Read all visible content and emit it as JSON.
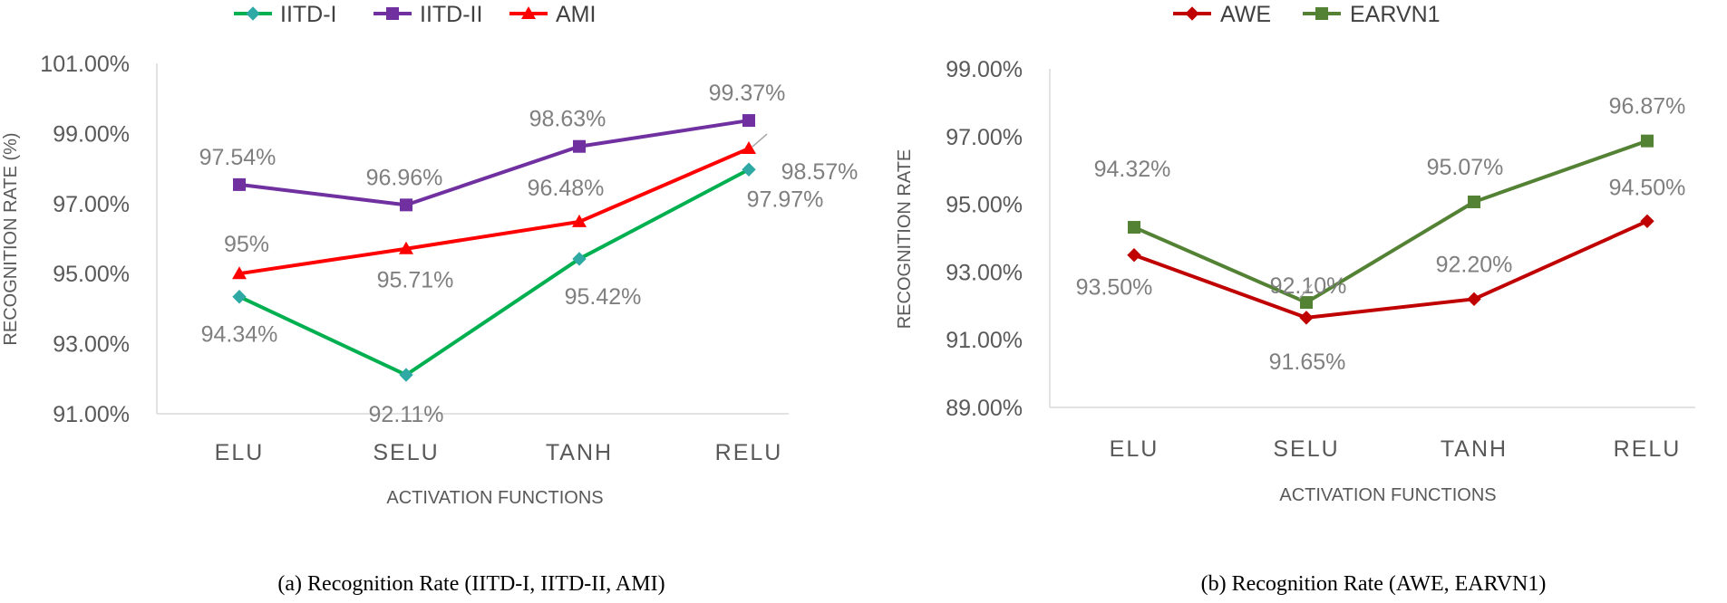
{
  "chart_data": [
    {
      "type": "line",
      "caption": "(a) Recognition Rate (IITD-I, IITD-II, AMI)",
      "xlabel": "ACTIVATION FUNCTIONS",
      "ylabel": "RECOGNITION RATE (%)",
      "categories": [
        "ELU",
        "SELU",
        "TANH",
        "RELU"
      ],
      "ylim": [
        91,
        101
      ],
      "yticks": [
        91,
        93,
        95,
        97,
        99,
        101
      ],
      "ytick_labels": [
        "91.00%",
        "93.00%",
        "95.00%",
        "97.00%",
        "99.00%",
        "101.00%"
      ],
      "legend_position": "top",
      "series": [
        {
          "name": "IITD-I",
          "color": "#00B050",
          "marker": "diamond",
          "marker_color": "#2EA9A4",
          "values": [
            94.34,
            92.11,
            95.42,
            97.97
          ],
          "labels": [
            "94.34%",
            "92.11%",
            "95.42%",
            "97.97%"
          ]
        },
        {
          "name": "IITD-II",
          "color": "#7030A0",
          "marker": "square",
          "marker_color": "#7030A0",
          "values": [
            97.54,
            96.96,
            98.63,
            99.37
          ],
          "labels": [
            "97.54%",
            "96.96%",
            "98.63%",
            "99.37%"
          ]
        },
        {
          "name": "AMI",
          "color": "#FF0000",
          "marker": "triangle",
          "marker_color": "#FF0000",
          "values": [
            95,
            95.71,
            96.48,
            98.57
          ],
          "labels": [
            "95%",
            "95.71%",
            "96.48%",
            "98.57%"
          ]
        }
      ]
    },
    {
      "type": "line",
      "caption": "(b) Recognition Rate (AWE, EARVN1)",
      "xlabel": "ACTIVATION FUNCTIONS",
      "ylabel": "RECOGNITION RATE",
      "categories": [
        "ELU",
        "SELU",
        "TANH",
        "RELU"
      ],
      "ylim": [
        89,
        99
      ],
      "yticks": [
        89,
        91,
        93,
        95,
        97,
        99
      ],
      "ytick_labels": [
        "89.00%",
        "91.00%",
        "93.00%",
        "95.00%",
        "97.00%",
        "99.00%"
      ],
      "legend_position": "top",
      "series": [
        {
          "name": "AWE",
          "color": "#C00000",
          "marker": "diamond",
          "marker_color": "#C00000",
          "values": [
            93.5,
            91.65,
            92.2,
            94.5
          ],
          "labels": [
            "93.50%",
            "91.65%",
            "92.20%",
            "94.50%"
          ]
        },
        {
          "name": "EARVN1",
          "color": "#548235",
          "marker": "square",
          "marker_color": "#548235",
          "values": [
            94.32,
            92.1,
            95.07,
            96.87
          ],
          "labels": [
            "94.32%",
            "92.10%",
            "95.07%",
            "96.87%"
          ]
        }
      ]
    }
  ]
}
